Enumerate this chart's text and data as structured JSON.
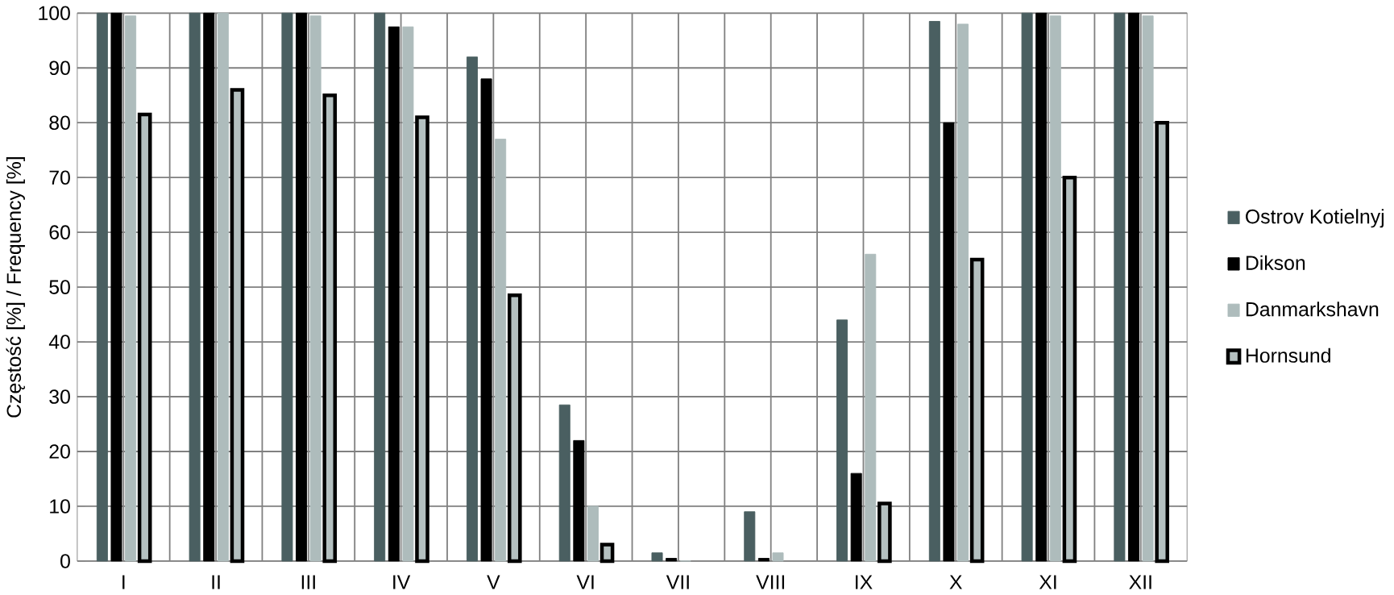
{
  "chart_data": {
    "type": "bar",
    "ylabel": "Częstość [%] / Frequency [%]",
    "categories": [
      "I",
      "II",
      "III",
      "IV",
      "V",
      "VI",
      "VII",
      "VIII",
      "IX",
      "X",
      "XI",
      "XII"
    ],
    "series": [
      {
        "name": "Ostrov Kotielnyj",
        "color": "#4a5f61",
        "values": [
          100,
          100,
          100,
          100,
          92,
          28.5,
          1.5,
          9,
          44,
          98.5,
          100,
          100
        ]
      },
      {
        "name": "Dikson",
        "color": "#000000",
        "values": [
          100,
          100,
          100,
          97.5,
          88,
          22,
          0.5,
          0.5,
          16,
          80,
          100,
          100
        ]
      },
      {
        "name": "Danmarkshavn",
        "color": "#aebcbc",
        "values": [
          99.5,
          100,
          99.5,
          97.5,
          77,
          10,
          0,
          1.5,
          56,
          98,
          99.5,
          99.5
        ]
      },
      {
        "name": "Hornsund",
        "color": "#b4c0c0",
        "values": [
          81.5,
          86,
          85,
          81,
          48.5,
          3,
          0,
          0,
          10.5,
          55,
          70,
          80
        ]
      }
    ],
    "ylim": [
      0,
      100
    ],
    "yticks": [
      0,
      10,
      20,
      30,
      40,
      50,
      60,
      70,
      80,
      90,
      100
    ],
    "grid": true,
    "legend": "right"
  }
}
